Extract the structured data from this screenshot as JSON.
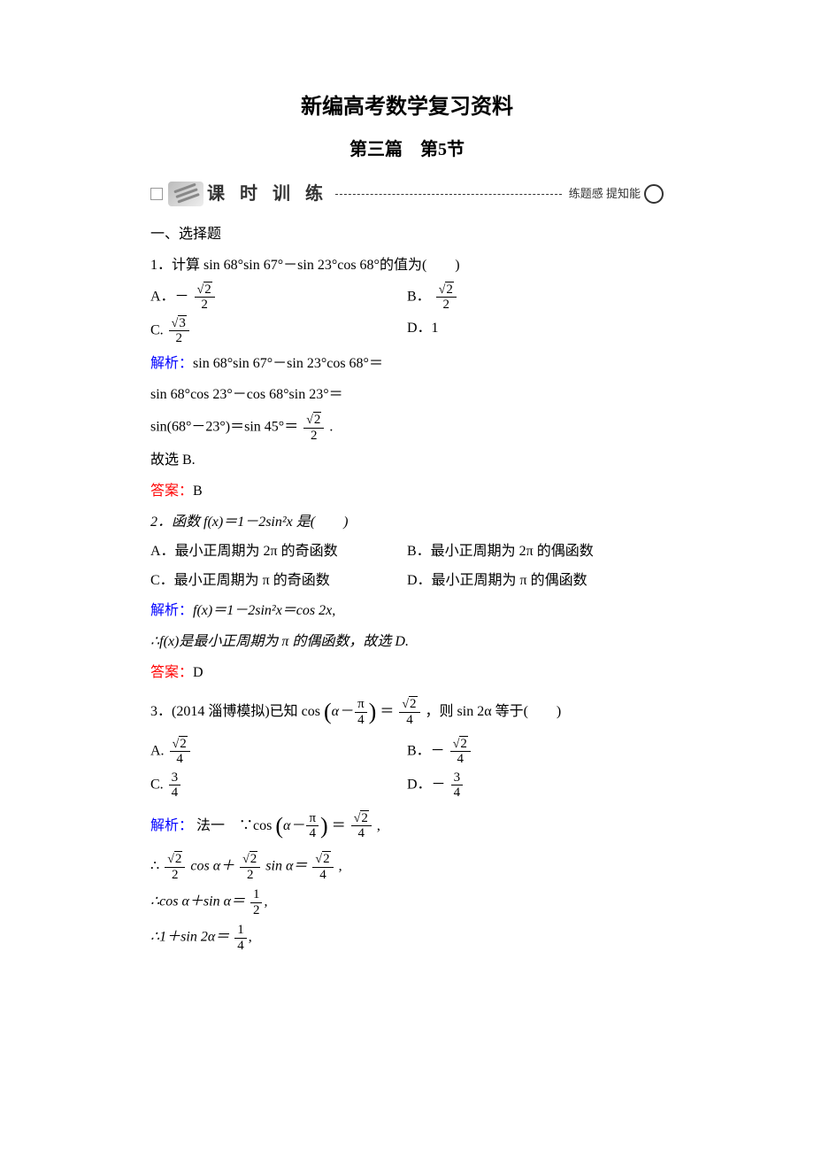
{
  "titles": {
    "main": "新编高考数学复习资料",
    "sub": "第三篇　第5节"
  },
  "banner": {
    "left_text": "课 时 训 练",
    "right_text": "练题感  提知能"
  },
  "colors": {
    "analysis_label": "#0000ff",
    "answer_label": "#ff0000",
    "text": "#000000",
    "background": "#ffffff"
  },
  "s1": {
    "heading": "一、选择题"
  },
  "q1": {
    "stem": "1．计算 sin 68°sin 67°－sin 23°cos 68°的值为(　　)",
    "optA_prefix": "A．－",
    "optC_prefix": "C.",
    "optB_prefix": "B．",
    "optD": "D．1",
    "frac_sqrt2_2_num": "2",
    "frac_sqrt2_2_den": "2",
    "frac_sqrt3_2_num": "3",
    "frac_sqrt3_2_den": "2",
    "ana_label": "解析：",
    "ana_l1": "sin 68°sin 67°－sin 23°cos 68°＝",
    "ana_l2": "sin 68°cos 23°－cos 68°sin 23°＝",
    "ana_l3_pre": "sin(68°－23°)＝sin 45°＝",
    "ana_l3_post": " .",
    "ana_l4": "故选 B.",
    "ans_label": "答案：",
    "ans": "B"
  },
  "q2": {
    "stem": "2．函数 f(x)＝1－2sin²x 是(　　)",
    "optA": "A．最小正周期为 2π 的奇函数",
    "optB": "B．最小正周期为 2π 的偶函数",
    "optC": "C．最小正周期为 π 的奇函数",
    "optD": "D．最小正周期为 π 的偶函数",
    "ana_label": "解析：",
    "ana_l1": "f(x)＝1－2sin²x＝cos 2x,",
    "ana_l2": "∴f(x)是最小正周期为 π 的偶函数，故选 D.",
    "ans_label": "答案：",
    "ans": "D"
  },
  "q3": {
    "stem_pre": "3．(2014 淄博模拟)已知 cos",
    "stem_arg_pre": "α－",
    "stem_arg_frac_num": "π",
    "stem_arg_frac_den": "4",
    "stem_mid": "＝",
    "stem_rhs_num": "2",
    "stem_rhs_den": "4",
    "stem_post": " ，则 sin 2α 等于(　　)",
    "optA_prefix": "A.",
    "optB_prefix": "B．－",
    "optC_prefix": "C.",
    "optD_prefix": "D．－",
    "fr_sqrt2_4_num": "2",
    "fr_sqrt2_4_den": "4",
    "fr_3_4_num": "3",
    "fr_3_4_den": "4",
    "ana_label": "解析：",
    "ana_method": "法一　∵cos",
    "ana_m_arg_pre": "α－",
    "ana_m_eq": "＝",
    "ana_m_post": " ,",
    "l2_pre": "∴",
    "l2_mid1": " cos α＋",
    "l2_mid2": " sin α＝",
    "l2_post": " ,",
    "fr_sqrt2_2_num": "2",
    "fr_sqrt2_2_den": "2",
    "l3_pre": "∴cos α＋sin α＝",
    "fr_1_2_num": "1",
    "fr_1_2_den": "2",
    "l3_post": ",",
    "l4_pre": "∴1＋sin 2α＝",
    "fr_1_4_num": "1",
    "fr_1_4_den": "4",
    "l4_post": ","
  }
}
